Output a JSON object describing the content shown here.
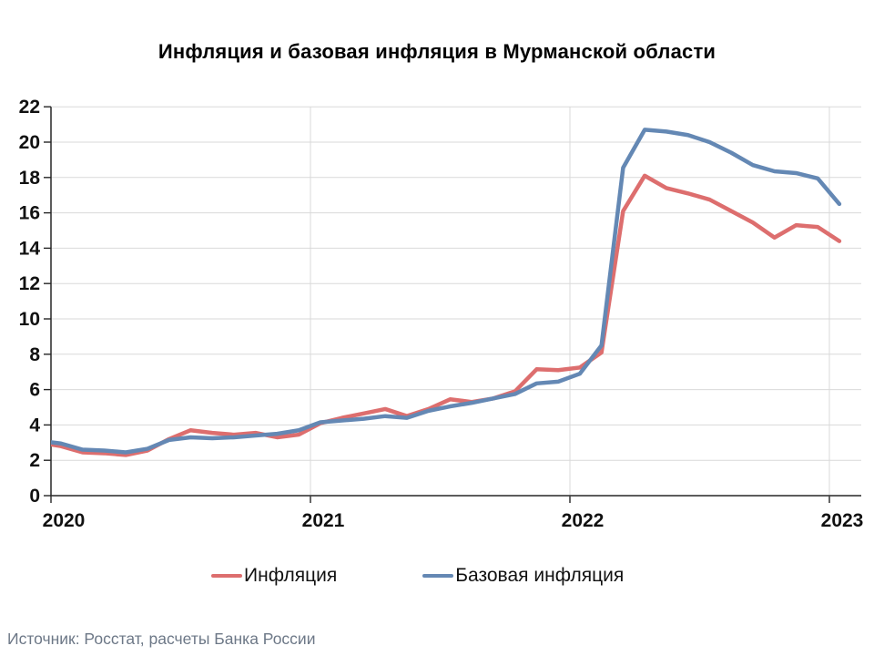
{
  "title": "Инфляция и базовая инфляция в Мурманской области",
  "source": "Источник: Росстат, расчеты Банка России",
  "legend": {
    "items": [
      {
        "label": "Инфляция",
        "color": "#DD6E6E"
      },
      {
        "label": "Базовая инфляция",
        "color": "#6488B4"
      }
    ]
  },
  "colors": {
    "inflation_line": "#DD6E6E",
    "core_inflation_line": "#6488B4",
    "axis": "#262626",
    "grid": "#d9d9d9",
    "tick_label": "#111111",
    "source_text": "#6d7887"
  },
  "chart_data": {
    "type": "line",
    "title": "Инфляция и базовая инфляция в Мурманской области",
    "xlabel": "",
    "ylabel": "",
    "ylim": [
      0,
      22
    ],
    "y_ticks": [
      0,
      2,
      4,
      6,
      8,
      10,
      12,
      14,
      16,
      18,
      20,
      22
    ],
    "x_tick_labels": [
      "2020",
      "2021",
      "2022",
      "2023"
    ],
    "grid": true,
    "legend_position": "bottom",
    "categories": [
      "2020-01",
      "2020-02",
      "2020-03",
      "2020-04",
      "2020-05",
      "2020-06",
      "2020-07",
      "2020-08",
      "2020-09",
      "2020-10",
      "2020-11",
      "2020-12",
      "2021-01",
      "2021-02",
      "2021-03",
      "2021-04",
      "2021-05",
      "2021-06",
      "2021-07",
      "2021-08",
      "2021-09",
      "2021-10",
      "2021-11",
      "2021-12",
      "2022-01",
      "2022-02",
      "2022-03",
      "2022-04",
      "2022-05",
      "2022-06",
      "2022-07",
      "2022-08",
      "2022-09",
      "2022-10",
      "2022-11",
      "2022-12",
      "2023-01"
    ],
    "series": [
      {
        "name": "Инфляция",
        "color": "#DD6E6E",
        "pre_point_dec_2019": 3.0,
        "values": [
          2.8,
          2.45,
          2.4,
          2.3,
          2.55,
          3.2,
          3.7,
          3.55,
          3.45,
          3.55,
          3.3,
          3.45,
          4.1,
          4.4,
          4.65,
          4.9,
          4.5,
          4.9,
          5.45,
          5.3,
          5.5,
          5.9,
          7.15,
          7.1,
          7.25,
          8.1,
          16.1,
          18.1,
          17.4,
          17.1,
          16.75,
          16.1,
          15.45,
          14.6,
          15.3,
          15.2,
          14.4
        ]
      },
      {
        "name": "Базовая инфляция",
        "color": "#6488B4",
        "pre_point_dec_2019": 3.1,
        "values": [
          2.95,
          2.6,
          2.55,
          2.45,
          2.65,
          3.15,
          3.3,
          3.25,
          3.3,
          3.4,
          3.5,
          3.7,
          4.15,
          4.25,
          4.35,
          4.5,
          4.4,
          4.8,
          5.05,
          5.25,
          5.5,
          5.75,
          6.35,
          6.45,
          6.9,
          8.5,
          18.55,
          20.7,
          20.6,
          20.4,
          20.0,
          19.4,
          18.7,
          18.35,
          18.25,
          17.95,
          16.5
        ]
      }
    ]
  }
}
